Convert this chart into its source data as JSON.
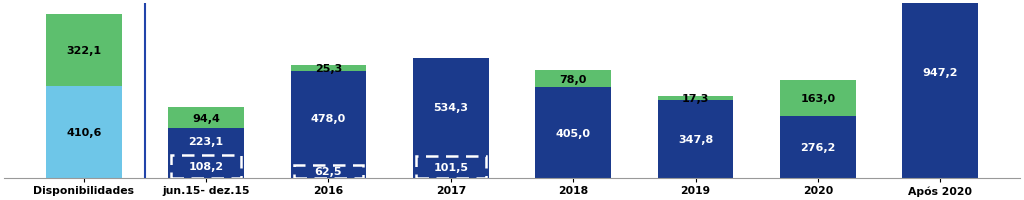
{
  "cat_labels": [
    "Disponibilidades",
    "jun.15- dez.15",
    "2016",
    "2017",
    "2018",
    "2019",
    "2020",
    "Após 2020"
  ],
  "blue_values": [
    410.6,
    223.1,
    478.0,
    534.3,
    405.0,
    347.8,
    276.2,
    947.2
  ],
  "green_values": [
    322.1,
    94.4,
    25.3,
    0.0,
    78.0,
    17.3,
    163.0,
    0.0
  ],
  "dashed_values": [
    0.0,
    108.2,
    62.5,
    101.5,
    0.0,
    0.0,
    0.0,
    0.0
  ],
  "dashed_labels": [
    "",
    "108,2",
    "62,5",
    "101,5",
    "",
    "",
    "",
    ""
  ],
  "blue_labels": [
    "410,6",
    "223,1",
    "478,0",
    "534,3",
    "405,0",
    "347,8",
    "276,2",
    "947,2"
  ],
  "green_labels": [
    "322,1",
    "94,4",
    "25,3",
    "",
    "78,0",
    "17,3",
    "163,0",
    ""
  ],
  "color_blue_dark": "#1B3A8C",
  "color_blue_light": "#6EC6E8",
  "color_green": "#5DBF6E",
  "bar_width": 0.62,
  "figsize": [
    10.24,
    2.01
  ],
  "dpi": 100,
  "ylim": [
    0,
    780
  ],
  "bg_color": "#FFFFFF",
  "label_fontsize": 8.0,
  "xtick_fontsize": 7.8
}
